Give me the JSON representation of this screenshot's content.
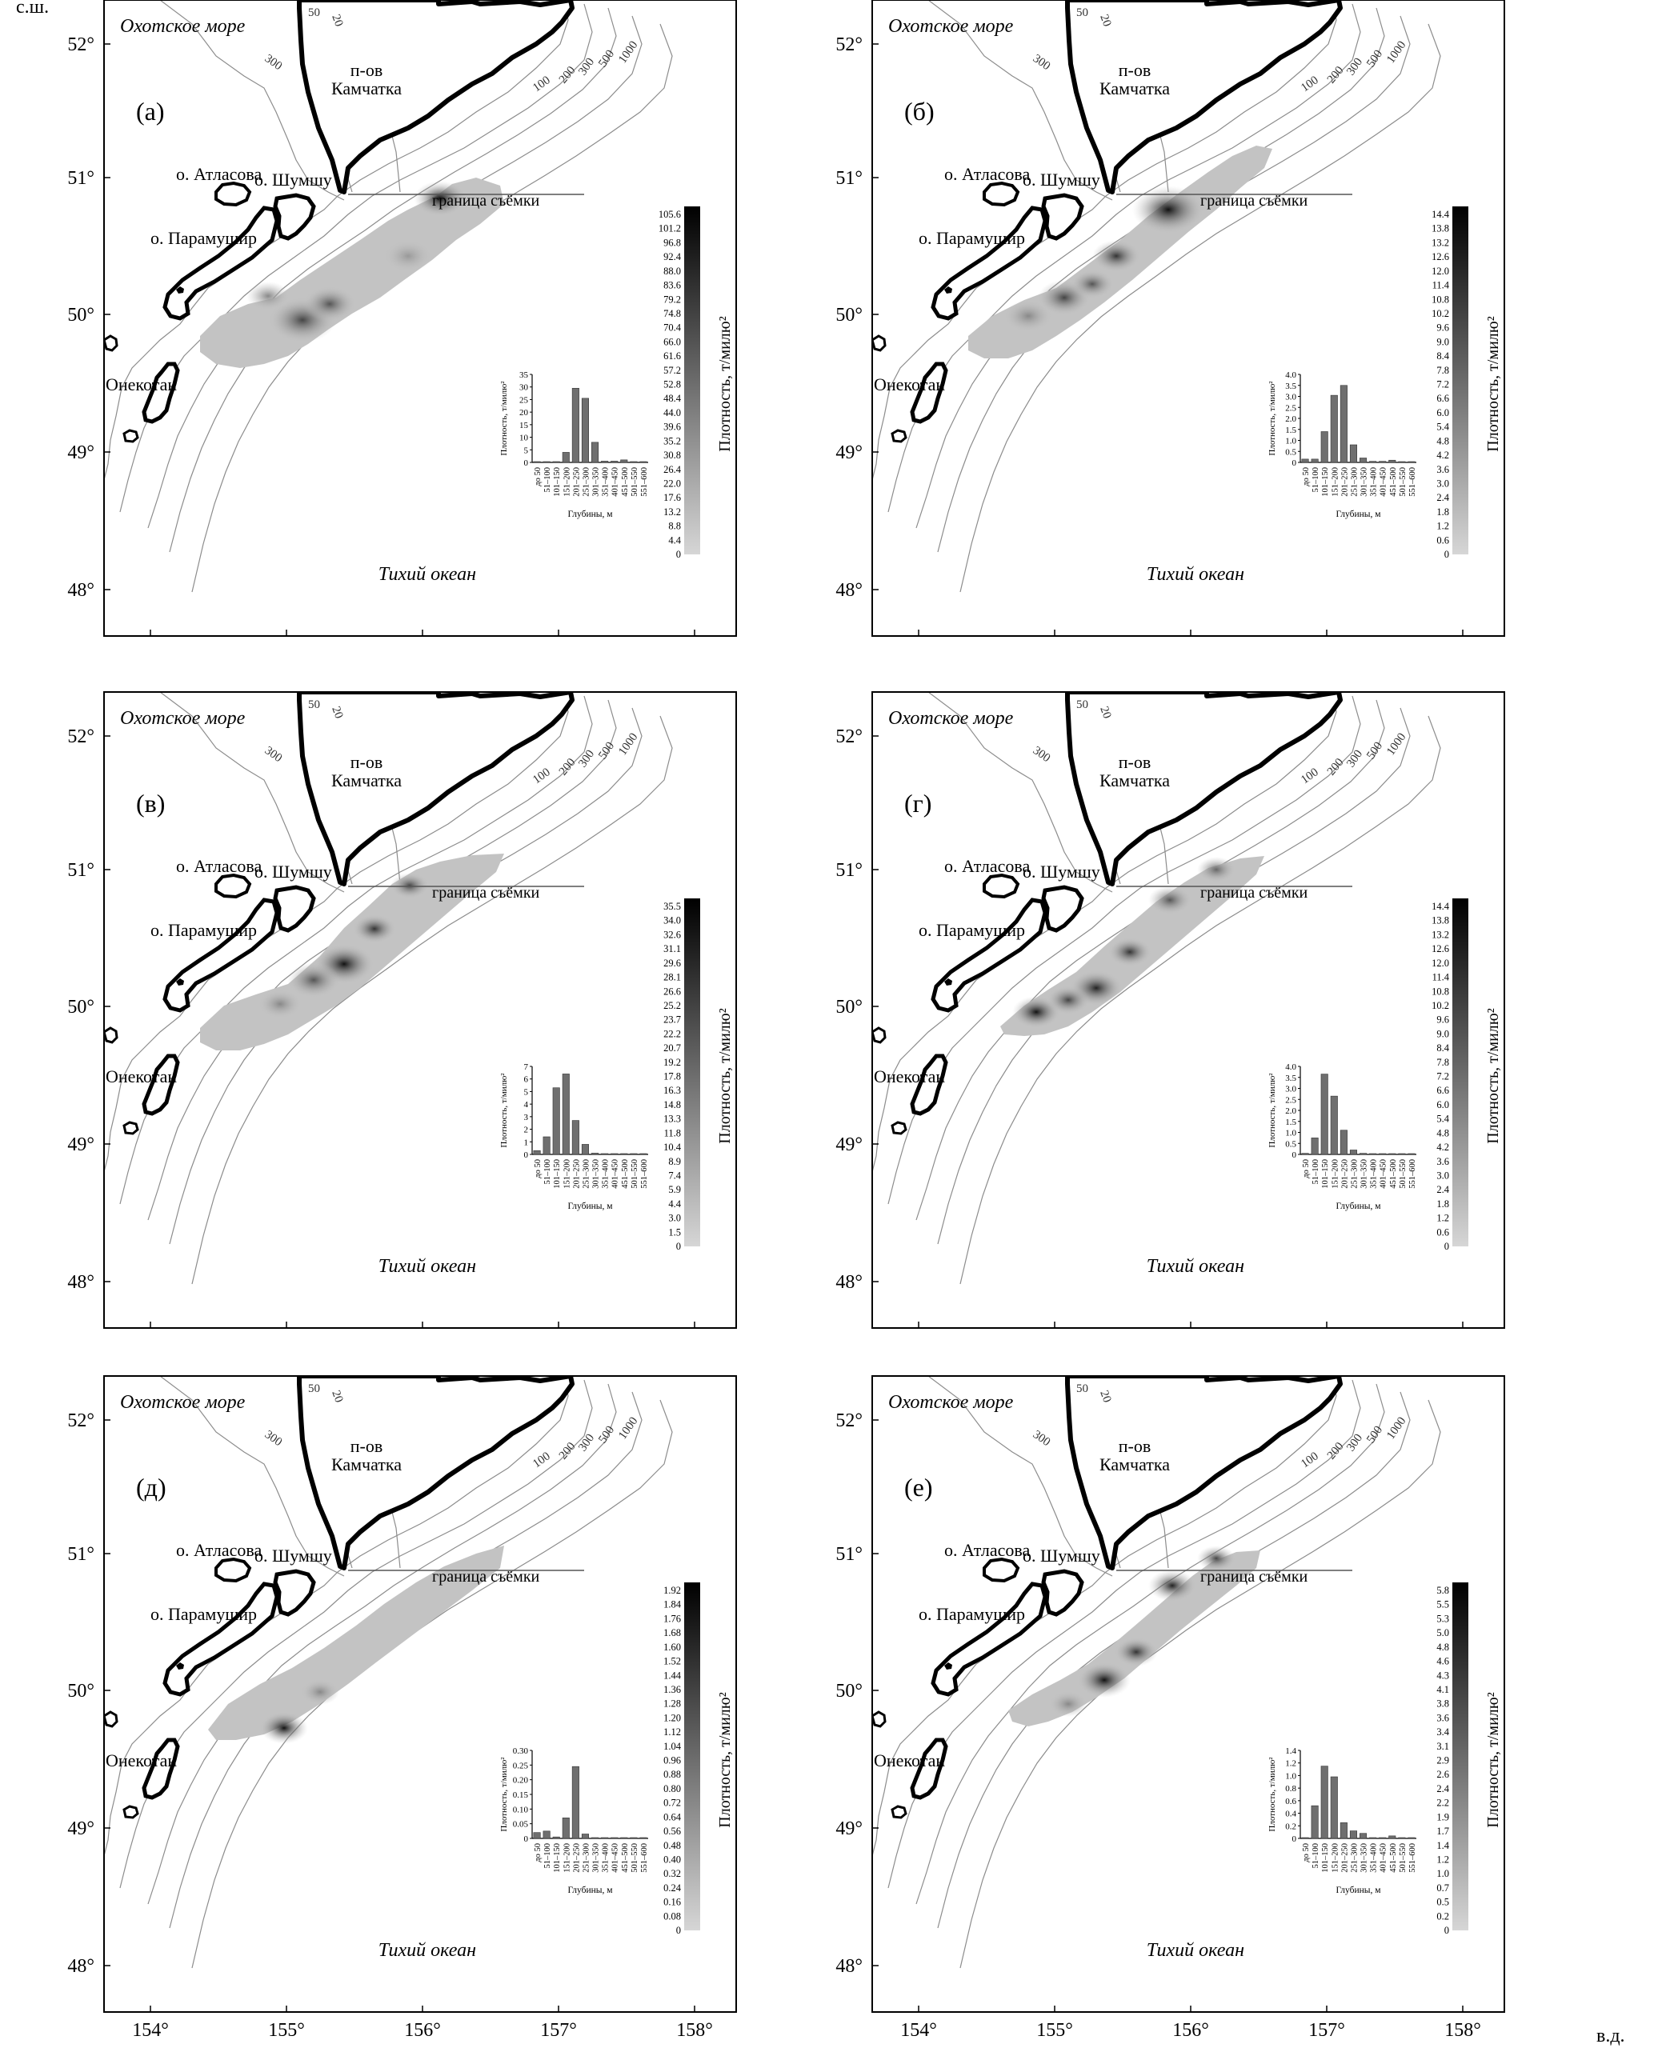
{
  "corner_labels": {
    "north": "с.ш.",
    "east": "в.д."
  },
  "lat_labels": [
    "52°",
    "51°",
    "50°",
    "49°",
    "48°"
  ],
  "lon_labels": [
    "154°",
    "155°",
    "156°",
    "157°",
    "158°"
  ],
  "place_labels": {
    "okhotsk": "Охотское море",
    "pacific": "Тихий океан",
    "kamchatka_1": "п-ов",
    "kamchatka_2": "Камчатка",
    "atlasova": "о. Атласова",
    "shumshu": "о. Шумшу",
    "paramushir": "о. Парамушир",
    "onekotan": "о. Онекотан",
    "survey_border": "граница съёмки"
  },
  "isobath_labels": [
    "300",
    "50",
    "20",
    "100",
    "200",
    "300",
    "500",
    "1000"
  ],
  "density_title": "Плотность, т/милю²",
  "inset_ylabel": "Плотность, т/милю²",
  "inset_xlabel": "Глубины, м",
  "depth_bins": [
    "до 50",
    "51–100",
    "101–150",
    "151–200",
    "201–250",
    "251–300",
    "301–350",
    "351–400",
    "401–450",
    "451–500",
    "501–550",
    "551–600"
  ],
  "colors": {
    "coast": "#000000",
    "isobath": "#8c8c8c",
    "frame": "#000000",
    "bar": "#6f6f6f"
  },
  "panels": [
    {
      "letter": "(а)",
      "scale": [
        "105.6",
        "101.2",
        "96.8",
        "92.4",
        "88.0",
        "83.6",
        "79.2",
        "74.8",
        "70.4",
        "66.0",
        "61.6",
        "57.2",
        "52.8",
        "48.4",
        "44.0",
        "39.6",
        "35.2",
        "30.8",
        "26.4",
        "22.0",
        "17.6",
        "13.2",
        "8.8",
        "4.4",
        "0"
      ],
      "chart_data": {
        "type": "bar",
        "categories_ref": "depth_bins",
        "values": [
          0.3,
          0.3,
          0.3,
          4,
          29.5,
          25.5,
          8,
          0.5,
          0.5,
          1,
          0.3,
          0.3
        ],
        "ylim": [
          0,
          35
        ],
        "yticks": [
          "0",
          "5",
          "10",
          "15",
          "20",
          "25",
          "30",
          "35"
        ]
      }
    },
    {
      "letter": "(б)",
      "scale": [
        "14.4",
        "13.8",
        "13.2",
        "12.6",
        "12.0",
        "11.4",
        "10.8",
        "10.2",
        "9.6",
        "9.0",
        "8.4",
        "7.8",
        "7.2",
        "6.6",
        "6.0",
        "5.4",
        "4.8",
        "4.2",
        "3.6",
        "3.0",
        "2.4",
        "1.8",
        "1.2",
        "0.6",
        "0"
      ],
      "chart_data": {
        "type": "bar",
        "categories_ref": "depth_bins",
        "values": [
          0.15,
          0.15,
          1.4,
          3.05,
          3.5,
          0.8,
          0.2,
          0.05,
          0.05,
          0.1,
          0.02,
          0.02
        ],
        "ylim": [
          0,
          4
        ],
        "yticks": [
          "0",
          "0.5",
          "1.0",
          "1.5",
          "2.0",
          "2.5",
          "3.0",
          "3.5",
          "4.0"
        ]
      }
    },
    {
      "letter": "(в)",
      "scale": [
        "35.5",
        "34.0",
        "32.6",
        "31.1",
        "29.6",
        "28.1",
        "26.6",
        "25.2",
        "23.7",
        "22.2",
        "20.7",
        "19.2",
        "17.8",
        "16.3",
        "14.8",
        "13.3",
        "11.8",
        "10.4",
        "8.9",
        "7.4",
        "5.9",
        "4.4",
        "3.0",
        "1.5",
        "0"
      ],
      "chart_data": {
        "type": "bar",
        "categories_ref": "depth_bins",
        "values": [
          0.3,
          1.4,
          5.3,
          6.4,
          2.7,
          0.8,
          0.1,
          0.05,
          0.05,
          0.05,
          0.02,
          0.02
        ],
        "ylim": [
          0,
          7
        ],
        "yticks": [
          "0",
          "1",
          "2",
          "3",
          "4",
          "5",
          "6",
          "7"
        ]
      }
    },
    {
      "letter": "(г)",
      "scale": [
        "14.4",
        "13.8",
        "13.2",
        "12.6",
        "12.0",
        "11.4",
        "10.8",
        "10.2",
        "9.6",
        "9.0",
        "8.4",
        "7.8",
        "7.2",
        "6.6",
        "6.0",
        "5.4",
        "4.8",
        "4.2",
        "3.6",
        "3.0",
        "2.4",
        "1.8",
        "1.2",
        "0.6",
        "0"
      ],
      "chart_data": {
        "type": "bar",
        "categories_ref": "depth_bins",
        "values": [
          0.05,
          0.75,
          3.65,
          2.65,
          1.1,
          0.2,
          0.05,
          0.02,
          0.02,
          0.02,
          0.02,
          0.02
        ],
        "ylim": [
          0,
          4
        ],
        "yticks": [
          "0",
          "0.5",
          "1.0",
          "1.5",
          "2.0",
          "2.5",
          "3.0",
          "3.5",
          "4.0"
        ]
      }
    },
    {
      "letter": "(д)",
      "scale": [
        "1.92",
        "1.84",
        "1.76",
        "1.68",
        "1.60",
        "1.52",
        "1.44",
        "1.36",
        "1.28",
        "1.20",
        "1.12",
        "1.04",
        "0.96",
        "0.88",
        "0.80",
        "0.72",
        "0.64",
        "0.56",
        "0.48",
        "0.40",
        "0.32",
        "0.24",
        "0.16",
        "0.08",
        "0"
      ],
      "chart_data": {
        "type": "bar",
        "categories_ref": "depth_bins",
        "values": [
          0.02,
          0.025,
          0.005,
          0.07,
          0.245,
          0.015,
          0.002,
          0.002,
          0.002,
          0.002,
          0.002,
          0.002
        ],
        "ylim": [
          0,
          0.3
        ],
        "yticks": [
          "0",
          "0.05",
          "0.10",
          "0.15",
          "0.20",
          "0.25",
          "0.30"
        ]
      }
    },
    {
      "letter": "(е)",
      "scale": [
        "5.8",
        "5.5",
        "5.3",
        "5.0",
        "4.8",
        "4.6",
        "4.3",
        "4.1",
        "3.8",
        "3.6",
        "3.4",
        "3.1",
        "2.9",
        "2.6",
        "2.4",
        "2.2",
        "1.9",
        "1.7",
        "1.4",
        "1.2",
        "1.0",
        "0.7",
        "0.5",
        "0.2",
        "0"
      ],
      "chart_data": {
        "type": "bar",
        "categories_ref": "depth_bins",
        "values": [
          0.01,
          0.52,
          1.15,
          0.98,
          0.25,
          0.12,
          0.08,
          0.01,
          0.01,
          0.04,
          0.01,
          0.01
        ],
        "ylim": [
          0,
          1.4
        ],
        "yticks": [
          "0",
          "0.2",
          "0.4",
          "0.6",
          "0.8",
          "1.0",
          "1.2",
          "1.4"
        ]
      }
    }
  ]
}
